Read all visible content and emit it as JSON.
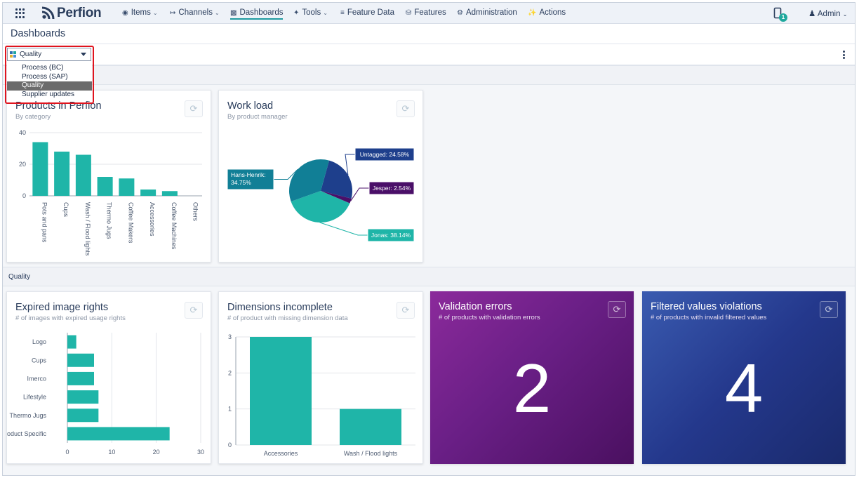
{
  "nav": {
    "brand": "Perfion",
    "items": [
      {
        "label": "Items",
        "icon": "cube-icon",
        "has_caret": true
      },
      {
        "label": "Channels",
        "icon": "channels-icon",
        "has_caret": true
      },
      {
        "label": "Dashboards",
        "icon": "dashboard-icon",
        "has_caret": false,
        "active": true
      },
      {
        "label": "Tools",
        "icon": "wrench-icon",
        "has_caret": true
      },
      {
        "label": "Feature Data",
        "icon": "list-icon",
        "has_caret": false
      },
      {
        "label": "Features",
        "icon": "database-icon",
        "has_caret": false
      },
      {
        "label": "Administration",
        "icon": "gear-icon",
        "has_caret": false
      },
      {
        "label": "Actions",
        "icon": "lightning-icon",
        "has_caret": false
      }
    ],
    "notification_count": "1",
    "user": "Admin"
  },
  "page": {
    "title": "Dashboards"
  },
  "selector": {
    "value": "Quality",
    "options": [
      "Process (BC)",
      "Process (SAP)",
      "Quality",
      "Supplier updates"
    ],
    "selected_index": 2
  },
  "sections": {
    "quality_label": "Quality"
  },
  "colors": {
    "teal": "#1fb5a8",
    "nav_bg": "#eef2f8",
    "highlight": "#e0141e",
    "kpi_purple": "#6a1f86",
    "kpi_blue": "#24388c"
  },
  "cards": {
    "products": {
      "title": "Products in Perfion",
      "subtitle": "By category"
    },
    "workload": {
      "title": "Work load",
      "subtitle": "By product manager"
    },
    "expired": {
      "title": "Expired image rights",
      "subtitle": "# of images with expired usage rights"
    },
    "dimensions": {
      "title": "Dimensions incomplete",
      "subtitle": "# of product with missing dimension data"
    },
    "validation": {
      "title": "Validation errors",
      "subtitle": "# of products with validation errors",
      "value": "2"
    },
    "filtered": {
      "title": "Filtered values violations",
      "subtitle": "# of products with invalid filtered values",
      "value": "4"
    }
  },
  "chart_data": [
    {
      "id": "products",
      "type": "bar",
      "categories": [
        "Pots and pans",
        "Cups",
        "Wash / Flood lights",
        "Thermo Jugs",
        "Coffee Makers",
        "Accessories",
        "Coffee Machines",
        "Others"
      ],
      "values": [
        34,
        28,
        26,
        12,
        11,
        4,
        3,
        0
      ],
      "yticks": [
        "0",
        "20",
        "40"
      ],
      "ylim": [
        0,
        40
      ],
      "grid": true
    },
    {
      "id": "workload",
      "type": "pie",
      "slices": [
        {
          "name": "Untagged",
          "label": "Untagged: 24.58%",
          "value": 24.58,
          "color": "#1e3f8c"
        },
        {
          "name": "Jesper",
          "label": "Jesper: 2.54%",
          "value": 2.54,
          "color": "#4a0f68"
        },
        {
          "name": "Jonas",
          "label": "Jonas: 38.14%",
          "value": 38.14,
          "color": "#1fb5a8"
        },
        {
          "name": "Hans-Henrik",
          "label1": "Hans-Henrik:",
          "label2": "34.75%",
          "value": 34.75,
          "color": "#117f96"
        }
      ]
    },
    {
      "id": "expired",
      "type": "bar",
      "orientation": "horizontal",
      "categories": [
        "Logo",
        "Cups",
        "Imerco",
        "Lifestyle",
        "Thermo Jugs",
        "Product Specific"
      ],
      "values": [
        2,
        6,
        6,
        7,
        7,
        23
      ],
      "xticks": [
        "0",
        "10",
        "20",
        "30"
      ],
      "xlim": [
        0,
        30
      ],
      "grid": true
    },
    {
      "id": "dimensions",
      "type": "bar",
      "categories": [
        "Accessories",
        "Wash / Flood lights"
      ],
      "values": [
        3,
        1
      ],
      "yticks": [
        "0",
        "1",
        "2",
        "3"
      ],
      "ylim": [
        0,
        3
      ],
      "grid": true
    }
  ]
}
